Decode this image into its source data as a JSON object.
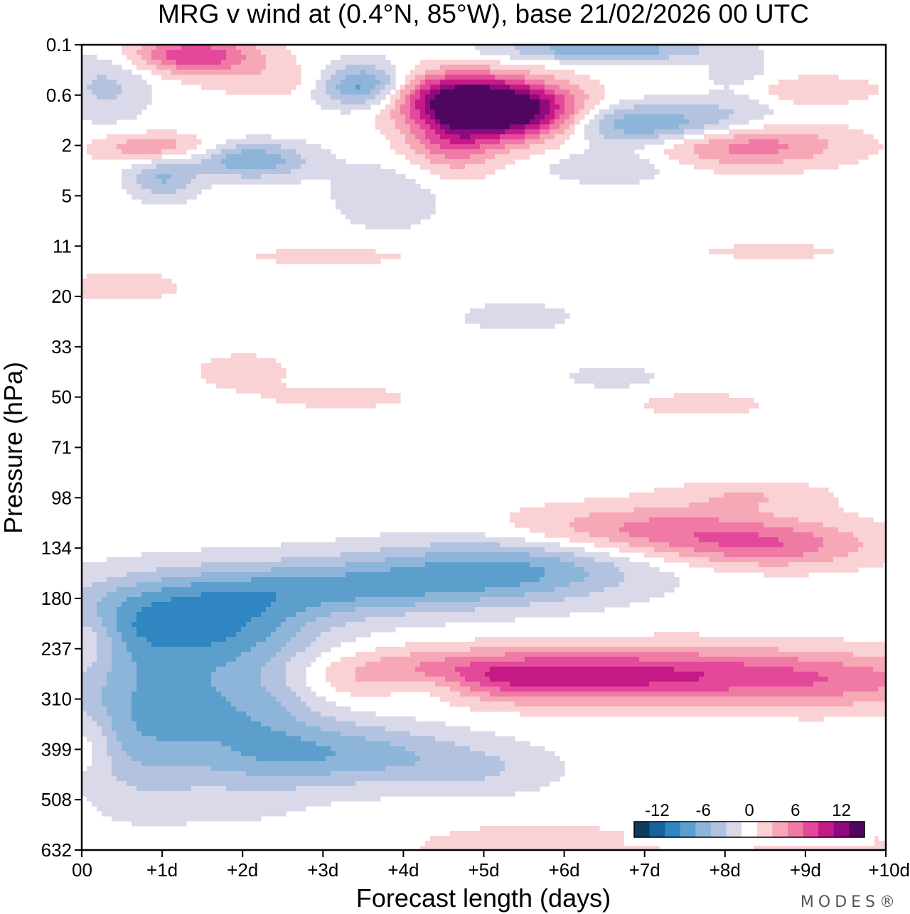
{
  "chart_data": {
    "type": "heatmap",
    "title": "MRG v wind at (0.4°N, 85°W),  base 21/02/2026  00 UTC",
    "xlabel": "Forecast length (days)",
    "ylabel": "Pressure (hPa)",
    "xlim": [
      0,
      10
    ],
    "x_ticks": [
      {
        "value": 0,
        "label": "00"
      },
      {
        "value": 1,
        "label": "+1d"
      },
      {
        "value": 2,
        "label": "+2d"
      },
      {
        "value": 3,
        "label": "+3d"
      },
      {
        "value": 4,
        "label": "+4d"
      },
      {
        "value": 5,
        "label": "+5d"
      },
      {
        "value": 6,
        "label": "+6d"
      },
      {
        "value": 7,
        "label": "+7d"
      },
      {
        "value": 8,
        "label": "+8d"
      },
      {
        "value": 9,
        "label": "+9d"
      },
      {
        "value": 10,
        "label": "+10d"
      }
    ],
    "y_ticks": [
      "0.1",
      "0.6",
      "2",
      "5",
      "11",
      "20",
      "33",
      "50",
      "71",
      "98",
      "134",
      "180",
      "237",
      "310",
      "399",
      "508",
      "632"
    ],
    "colorbar": {
      "levels": [
        -15,
        -13,
        -11,
        -9,
        -7,
        -5,
        -3,
        -1,
        1,
        3,
        5,
        7,
        9,
        11,
        13,
        15
      ],
      "colors": [
        "#0d3c5e",
        "#16629a",
        "#2f86c0",
        "#5d9fcc",
        "#8db5d9",
        "#b3c3df",
        "#d9d9ea",
        "#ffffff",
        "#fad1d4",
        "#f7a8b6",
        "#f07aa6",
        "#e3489a",
        "#c51a86",
        "#8e0a7e",
        "#4e065f"
      ],
      "tick_labels": [
        {
          "value": -12,
          "label": "-12"
        },
        {
          "value": -6,
          "label": "-6"
        },
        {
          "value": 0,
          "label": "0"
        },
        {
          "value": 6,
          "label": "6"
        },
        {
          "value": 12,
          "label": "12"
        }
      ]
    },
    "features": [
      {
        "x": 3.2,
        "level": 10.8,
        "sx": 1.4,
        "sy": 0.4,
        "amp": -6.2
      },
      {
        "x": 1.2,
        "level": 11.4,
        "sx": 1.1,
        "sy": 0.55,
        "amp": -7.5
      },
      {
        "x": 3.3,
        "level": 14.1,
        "sx": 1.0,
        "sy": 0.45,
        "amp": -6.0
      },
      {
        "x": 5.3,
        "level": 10.4,
        "sx": 1.2,
        "sy": 0.45,
        "amp": -7.0
      },
      {
        "x": 1.0,
        "level": 12.7,
        "sx": 0.9,
        "sy": 1.0,
        "amp": -4.8
      },
      {
        "x": 2.2,
        "level": 13.2,
        "sx": 0.6,
        "sy": 1.2,
        "amp": -4.2
      },
      {
        "x": 0.8,
        "level": 13.8,
        "sx": 0.6,
        "sy": 1.0,
        "amp": -3.8
      },
      {
        "x": 5.0,
        "level": 14.4,
        "sx": 0.7,
        "sy": 0.35,
        "amp": -2.5
      },
      {
        "x": 5.2,
        "level": 12.55,
        "sx": 1.5,
        "sy": 0.35,
        "amp": 9.0
      },
      {
        "x": 7.5,
        "level": 12.5,
        "sx": 1.4,
        "sy": 0.4,
        "amp": 5.5
      },
      {
        "x": 9.5,
        "level": 12.65,
        "sx": 1.2,
        "sy": 0.4,
        "amp": 4.5
      },
      {
        "x": 4.3,
        "level": 12.75,
        "sx": 0.5,
        "sy": 0.25,
        "amp": -4.5
      },
      {
        "x": 7.2,
        "level": 9.65,
        "sx": 1.3,
        "sy": 0.35,
        "amp": 6.0
      },
      {
        "x": 8.6,
        "level": 10.0,
        "sx": 0.9,
        "sy": 0.3,
        "amp": 5.0
      },
      {
        "x": 5.4,
        "level": 1.35,
        "sx": 0.6,
        "sy": 0.4,
        "amp": 15.0
      },
      {
        "x": 4.6,
        "level": 1.0,
        "sx": 0.6,
        "sy": 0.35,
        "amp": 10.0
      },
      {
        "x": 4.6,
        "level": 1.8,
        "sx": 0.4,
        "sy": 0.5,
        "amp": 7.0
      },
      {
        "x": 1.4,
        "level": 0.2,
        "sx": 0.55,
        "sy": 0.25,
        "amp": 9.0
      },
      {
        "x": 3.5,
        "level": 0.8,
        "sx": 0.4,
        "sy": 0.3,
        "amp": -9.5
      },
      {
        "x": 6.5,
        "level": 0.1,
        "sx": 0.9,
        "sy": 0.15,
        "amp": -7.0
      },
      {
        "x": 7.0,
        "level": 1.6,
        "sx": 0.8,
        "sy": 0.3,
        "amp": -8.0
      },
      {
        "x": 2.1,
        "level": 2.3,
        "sx": 0.5,
        "sy": 0.25,
        "amp": -7.0
      },
      {
        "x": 1.0,
        "level": 2.65,
        "sx": 0.3,
        "sy": 0.3,
        "amp": -5.0
      },
      {
        "x": 8.2,
        "level": 2.0,
        "sx": 0.9,
        "sy": 0.3,
        "amp": 6.5
      },
      {
        "x": 0.9,
        "level": 2.05,
        "sx": 0.5,
        "sy": 0.2,
        "amp": 5.0
      },
      {
        "x": 0.3,
        "level": 0.8,
        "sx": 0.4,
        "sy": 0.5,
        "amp": -3.5
      },
      {
        "x": 8.8,
        "level": 0.9,
        "sx": 0.7,
        "sy": 0.2,
        "amp": 3.5
      },
      {
        "x": 8.2,
        "level": 0.9,
        "sx": 0.4,
        "sy": 0.4,
        "amp": -3.0
      },
      {
        "x": 3.8,
        "level": 3.0,
        "sx": 0.5,
        "sy": 0.5,
        "amp": -2.5
      },
      {
        "x": 6.6,
        "level": 2.4,
        "sx": 0.6,
        "sy": 0.25,
        "amp": -3.0
      },
      {
        "x": 2.5,
        "level": 0.7,
        "sx": 0.7,
        "sy": 0.25,
        "amp": 2.5
      },
      {
        "x": 0.5,
        "level": 4.8,
        "sx": 0.5,
        "sy": 0.2,
        "amp": 2.6
      },
      {
        "x": 2.0,
        "level": 6.5,
        "sx": 0.4,
        "sy": 0.25,
        "amp": 2.5
      },
      {
        "x": 3.2,
        "level": 7.0,
        "sx": 0.6,
        "sy": 0.15,
        "amp": 2.4
      },
      {
        "x": 3.1,
        "level": 4.2,
        "sx": 0.7,
        "sy": 0.12,
        "amp": 2.3
      },
      {
        "x": 5.4,
        "level": 5.4,
        "sx": 0.5,
        "sy": 0.2,
        "amp": -2.3
      },
      {
        "x": 6.6,
        "level": 6.6,
        "sx": 0.4,
        "sy": 0.15,
        "amp": -2.3
      },
      {
        "x": 7.7,
        "level": 7.15,
        "sx": 0.5,
        "sy": 0.15,
        "amp": 2.6
      },
      {
        "x": 8.3,
        "level": 8.95,
        "sx": 0.7,
        "sy": 0.2,
        "amp": 2.6
      },
      {
        "x": 8.6,
        "level": 4.1,
        "sx": 0.6,
        "sy": 0.1,
        "amp": 2.3
      },
      {
        "x": 0.1,
        "level": 11.8,
        "sx": 0.25,
        "sy": 0.4,
        "amp": 3.5
      },
      {
        "x": 0.1,
        "level": 13.9,
        "sx": 0.2,
        "sy": 0.4,
        "amp": 2.6
      },
      {
        "x": 5.7,
        "level": 15.95,
        "sx": 1.0,
        "sy": 0.3,
        "amp": 3.0
      },
      {
        "x": 9.2,
        "level": 15.95,
        "sx": 0.6,
        "sy": 0.25,
        "amp": 2.6
      }
    ]
  },
  "branding": "MODES®"
}
